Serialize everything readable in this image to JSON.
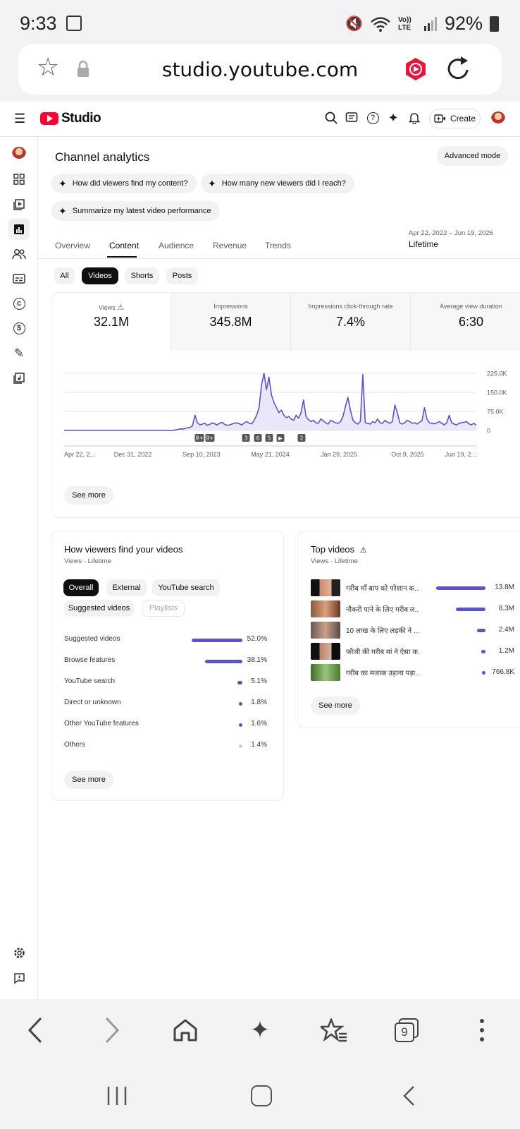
{
  "status": {
    "time": "9:33",
    "vo_lte": "Vo)) LTE",
    "battery": "92%"
  },
  "browser": {
    "url": "studio.youtube.com",
    "tabs_count": "9"
  },
  "header": {
    "logo": "Studio",
    "create": "Create"
  },
  "page": {
    "title": "Channel analytics",
    "advanced_mode": "Advanced mode",
    "suggestions": [
      "How did viewers find my content?",
      "How many new viewers did I reach?",
      "Summarize my latest video performance"
    ],
    "tabs": [
      "Overview",
      "Content",
      "Audience",
      "Revenue",
      "Trends"
    ],
    "active_tab": "Content",
    "date_range": "Apr 22, 2022 – Jun 19, 2026",
    "date_label": "Lifetime",
    "filters": [
      "All",
      "Videos",
      "Shorts",
      "Posts"
    ],
    "active_filter": "Videos"
  },
  "metrics": [
    {
      "label": "Views",
      "value": "32.1M",
      "warn": true
    },
    {
      "label": "Impressions",
      "value": "345.8M"
    },
    {
      "label": "Impressions click-through rate",
      "value": "7.4%"
    },
    {
      "label": "Average view duration",
      "value": "6:30"
    }
  ],
  "chart_data": {
    "type": "area",
    "series": [
      {
        "values": [
          0,
          0,
          0,
          0,
          0,
          0,
          0,
          0,
          0,
          0,
          0,
          0,
          0,
          0,
          0,
          0,
          0,
          0,
          0,
          0,
          0,
          0,
          0,
          0,
          0,
          0,
          0,
          0,
          0,
          0,
          0,
          0,
          0,
          0,
          0,
          0,
          0,
          0,
          0,
          0,
          0,
          0,
          0,
          0,
          0,
          2000,
          4000,
          6000,
          5000,
          8000,
          10000,
          12000,
          18000,
          60000,
          30000,
          22000,
          25000,
          28000,
          20000,
          24000,
          30000,
          26000,
          22000,
          28000,
          32000,
          24000,
          20000,
          22000,
          25000,
          28000,
          30000,
          26000,
          22000,
          30000,
          35000,
          28000,
          26000,
          40000,
          60000,
          90000,
          180000,
          225000,
          160000,
          210000,
          140000,
          110000,
          90000,
          70000,
          80000,
          60000,
          50000,
          55000,
          45000,
          40000,
          60000,
          48000,
          70000,
          120000,
          55000,
          42000,
          35000,
          40000,
          30000,
          28000,
          45000,
          38000,
          30000,
          25000,
          40000,
          35000,
          30000,
          28000,
          35000,
          55000,
          95000,
          130000,
          80000,
          40000,
          30000,
          25000,
          35000,
          220000,
          30000,
          28000,
          25000,
          35000,
          30000,
          45000,
          30000,
          28000,
          40000,
          32000,
          28000,
          35000,
          100000,
          70000,
          30000,
          25000,
          30000,
          40000,
          35000,
          28000,
          30000,
          25000,
          32000,
          38000,
          90000,
          45000,
          30000,
          28000,
          26000,
          30000,
          35000,
          28000,
          22000,
          30000,
          60000,
          30000,
          25000,
          22000,
          28000,
          30000,
          32000,
          35000,
          26000,
          22000,
          28000,
          20000
        ]
      }
    ],
    "x_ticks": [
      "Apr 22, 2...",
      "Dec 31, 2022",
      "Sep 10, 2023",
      "May 21, 2024",
      "Jan 29, 2025",
      "Oct 9, 2025",
      "Jun 19, 2..."
    ],
    "y_ticks": [
      "225.0K",
      "150.0K",
      "75.0K",
      "0"
    ],
    "ylim": [
      0,
      225000
    ],
    "markers": [
      "9+",
      "9+",
      "3",
      "6",
      "5",
      "▶",
      "2"
    ],
    "see_more": "See more"
  },
  "traffic": {
    "title": "How viewers find your videos",
    "subtitle": "Views · Lifetime",
    "chips": [
      "Overall",
      "External",
      "YouTube search",
      "Suggested videos",
      "Playlists"
    ],
    "rows": [
      {
        "label": "Suggested videos",
        "value": "52.0%",
        "fraction": 0.52
      },
      {
        "label": "Browse features",
        "value": "38.1%",
        "fraction": 0.381
      },
      {
        "label": "YouTube search",
        "value": "5.1%",
        "fraction": 0.051
      },
      {
        "label": "Direct or unknown",
        "value": "1.8%",
        "fraction": 0.018
      },
      {
        "label": "Other YouTube features",
        "value": "1.6%",
        "fraction": 0.016
      },
      {
        "label": "Others",
        "value": "1.4%",
        "fraction": 0.014
      }
    ],
    "see_more": "See more"
  },
  "top_videos": {
    "title": "Top videos",
    "subtitle": "Views · Lifetime",
    "items": [
      {
        "title": "गरीब माँ बाप को परेशान क...",
        "value": "13.8M",
        "fraction": 1.0
      },
      {
        "title": "नौकरी पाने के लिए गरीब ल...",
        "value": "8.3M",
        "fraction": 0.6
      },
      {
        "title": "10 लाख के लिए लड़की ने ...",
        "value": "2.4M",
        "fraction": 0.17
      },
      {
        "title": "फौजी की गरीब मां ने ऐसा क...",
        "value": "1.2M",
        "fraction": 0.087
      },
      {
        "title": "गरीब का मजाक उड़ाना पड़ा...",
        "value": "766.8K",
        "fraction": 0.056
      }
    ],
    "see_more": "See more"
  },
  "colors": {
    "accent": "#5b54c8",
    "brand": "#ff0033"
  }
}
